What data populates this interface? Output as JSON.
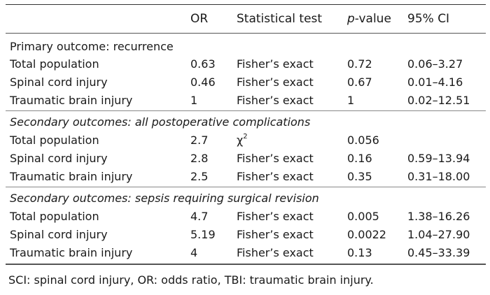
{
  "header": {
    "or": "OR",
    "test": "Statistical test",
    "p_prefix": "p",
    "p_suffix": "-value",
    "ci": "95% CI"
  },
  "sections": [
    {
      "title": "Primary outcome: recurrence",
      "italic": false,
      "rows": [
        {
          "label": "Total population",
          "or": "0.63",
          "test": "Fisher’s exact",
          "p": "0.72",
          "ci": "0.06–3.27"
        },
        {
          "label": "Spinal cord injury",
          "or": "0.46",
          "test": "Fisher’s exact",
          "p": "0.67",
          "ci": "0.01–4.16"
        },
        {
          "label": "Traumatic brain injury",
          "or": "1",
          "test": "Fisher’s exact",
          "p": "1",
          "ci": "0.02–12.51"
        }
      ]
    },
    {
      "title": "Secondary outcomes: all postoperative complications",
      "italic": true,
      "rows": [
        {
          "label": "Total population",
          "or": "2.7",
          "test": "χ",
          "test_sup": "2",
          "p": "0.056",
          "ci": ""
        },
        {
          "label": "Spinal cord injury",
          "or": "2.8",
          "test": "Fisher’s exact",
          "p": "0.16",
          "ci": "0.59–13.94"
        },
        {
          "label": "Traumatic brain injury",
          "or": "2.5",
          "test": "Fisher’s exact",
          "p": "0.35",
          "ci": "0.31–18.00"
        }
      ]
    },
    {
      "title": "Secondary outcomes: sepsis requiring surgical revision",
      "italic": true,
      "rows": [
        {
          "label": "Total population",
          "or": "4.7",
          "test": "Fisher’s exact",
          "p": "0.005",
          "ci": "1.38–16.26"
        },
        {
          "label": "Spinal cord injury",
          "or": "5.19",
          "test": "Fisher’s exact",
          "p": "0.0022",
          "ci": "1.04–27.90"
        },
        {
          "label": "Traumatic brain injury",
          "or": "4",
          "test": "Fisher’s exact",
          "p": "0.13",
          "ci": "0.45–33.39"
        }
      ]
    }
  ],
  "footnote": "SCI: spinal cord injury, OR: odds ratio, TBI: traumatic brain injury."
}
